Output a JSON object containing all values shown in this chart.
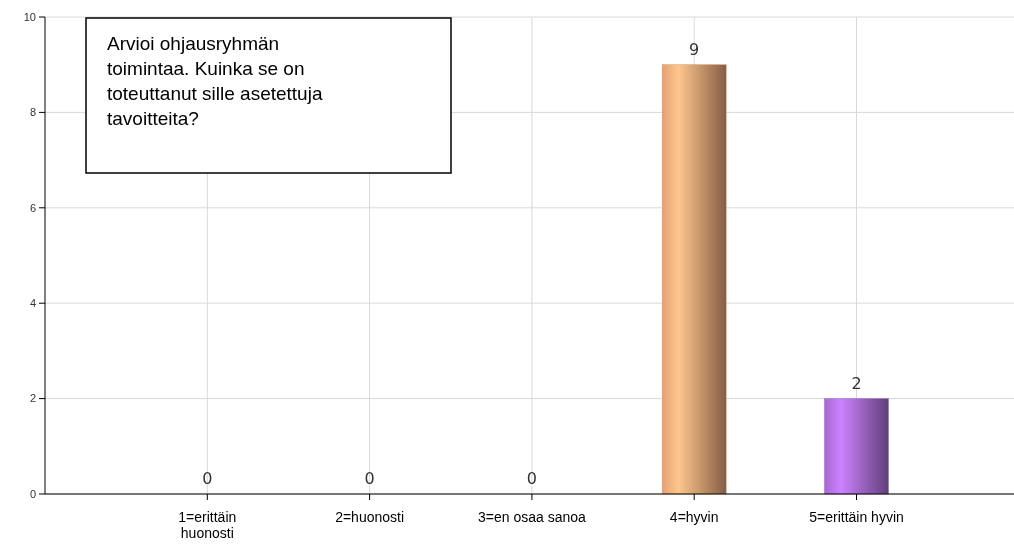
{
  "chart_data": {
    "type": "bar",
    "title": "Arvioi ohjausryhmän toimintaa. Kuinka se on toteuttanut sille asetettuja tavoitteita?",
    "categories": [
      "1=erittäin huonosti",
      "2=huonosti",
      "3=en osaa sanoa",
      "4=hyvin",
      "5=erittäin hyvin"
    ],
    "values": [
      0,
      0,
      0,
      9,
      2
    ],
    "colors": [
      "#4f81bd",
      "#c0504d",
      "#9bbb59",
      "#d4956a",
      "#9a62c0"
    ],
    "ylim": [
      0,
      10
    ],
    "yticks": [
      0,
      2,
      4,
      6,
      8,
      10
    ],
    "grid": true,
    "data_labels": true
  }
}
